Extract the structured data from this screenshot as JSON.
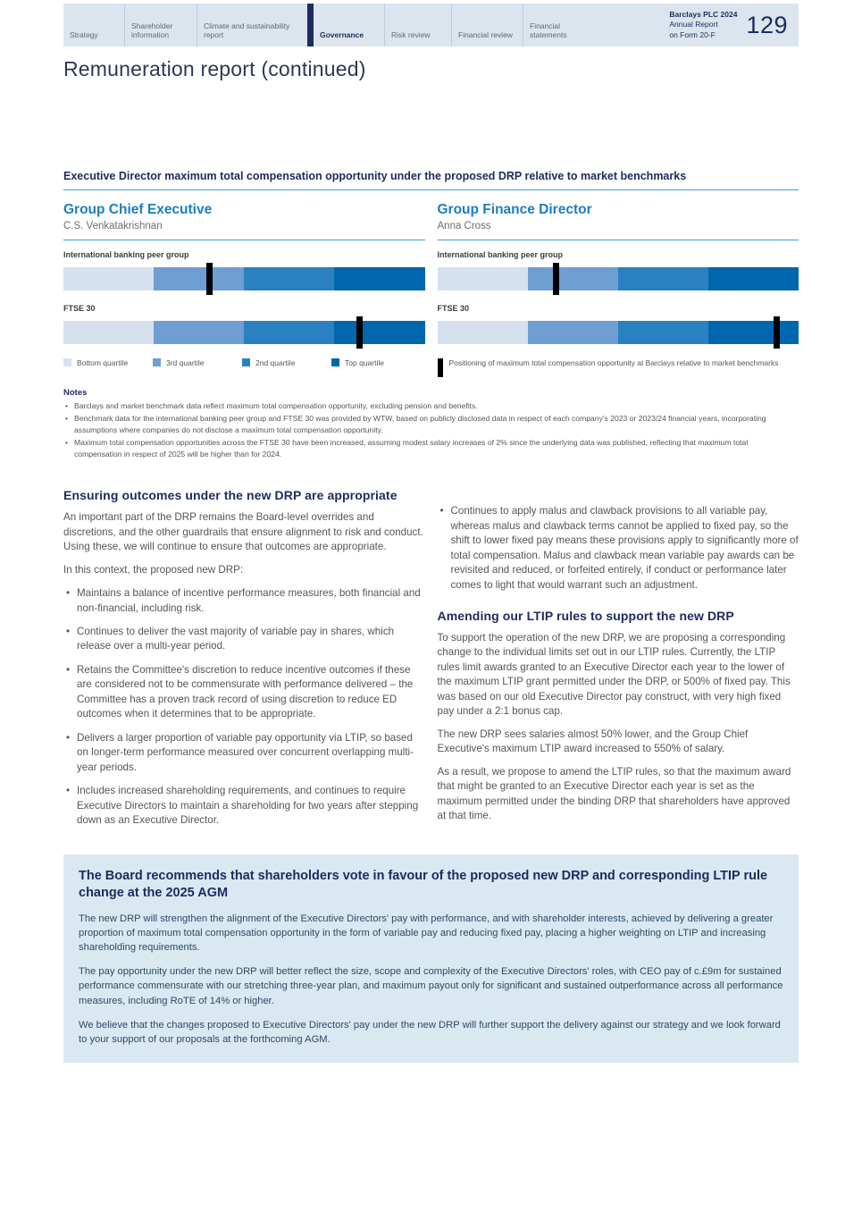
{
  "header": {
    "tabs": [
      {
        "label": "Strategy",
        "active": false
      },
      {
        "label": "Shareholder information",
        "active": false
      },
      {
        "label": "Climate and sustainability report",
        "active": false
      },
      {
        "label": "Governance",
        "active": true
      },
      {
        "label": "Risk review",
        "active": false
      },
      {
        "label": "Financial review",
        "active": false
      },
      {
        "label": "Financial statements",
        "active": false
      }
    ],
    "brand_line1": "Barclays PLC 2024",
    "brand_line2": "Annual Report",
    "brand_line3": "on Form 20-F",
    "page_number": "129"
  },
  "page_title": "Remuneration report (continued)",
  "chart_data": {
    "type": "bar",
    "subtype": "stacked-quartile-benchmark",
    "title": "Executive Director maximum total compensation opportunity under the proposed DRP relative to market benchmarks",
    "quartile_segments_pct": [
      25,
      25,
      25,
      25
    ],
    "quartile_colors": [
      "#d6e1ef",
      "#6f9ed2",
      "#2a80c1",
      "#0066ad"
    ],
    "marker_color": "#000000",
    "panels": [
      {
        "role": "Group Chief Executive",
        "person": "C.S. Venkatakrishnan",
        "bars": [
          {
            "label": "International banking peer group",
            "marker_pct": 40.5
          },
          {
            "label": "FTSE 30",
            "marker_pct": 82
          }
        ]
      },
      {
        "role": "Group Finance Director",
        "person": "Anna Cross",
        "bars": [
          {
            "label": "International banking peer group",
            "marker_pct": 33
          },
          {
            "label": "FTSE 30",
            "marker_pct": 94
          }
        ]
      }
    ],
    "legend": {
      "items": [
        "Bottom quartile",
        "3rd quartile",
        "2nd quartile",
        "Top quartile"
      ],
      "marker_label": "Positioning of maximum total compensation opportunity at Barclays relative to market benchmarks"
    }
  },
  "notes": {
    "title": "Notes",
    "bullets": [
      "Barclays and market benchmark data reflect maximum total compensation opportunity, excluding pension and benefits.",
      "Benchmark data for the international banking peer group and FTSE 30 was provided by WTW, based on publicly disclosed data in respect of each company's 2023 or 2023/24 financial years, incorporating assumptions where companies do not disclose a maximum total compensation opportunity.",
      "Maximum total compensation opportunities across the FTSE 30 have been increased, assuming modest salary increases of 2% since the underlying data was published, reflecting that maximum total compensation in respect of 2025 will be higher than for 2024."
    ]
  },
  "body": {
    "left": {
      "heading": "Ensuring outcomes under the new DRP are appropriate",
      "p1": "An important part of the DRP remains the Board-level overrides and discretions, and the other guardrails that ensure alignment to risk and conduct. Using these, we will continue to ensure that outcomes are appropriate.",
      "p2": "In this context, the proposed new DRP:",
      "bullets": [
        "Maintains a balance of incentive performance measures, both financial and non-financial, including risk.",
        "Continues to deliver the vast majority of variable pay in shares, which release over a multi-year period.",
        "Retains the Committee's discretion to reduce incentive outcomes if these are considered not to be commensurate with performance delivered – the Committee has a proven track record of using discretion to reduce ED outcomes when it determines that to be appropriate.",
        "Delivers a larger proportion of variable pay opportunity via LTIP, so based on longer-term performance measured over concurrent overlapping multi-year periods.",
        "Includes increased shareholding requirements, and continues to require Executive Directors to maintain a shareholding for two years after stepping down as an Executive Director."
      ]
    },
    "right": {
      "bullet": "Continues to apply malus and clawback provisions to all variable pay, whereas malus and clawback terms cannot be applied to fixed pay, so the shift to lower fixed pay means these provisions apply to significantly more of total compensation. Malus and clawback mean variable pay awards can be revisited and reduced, or forfeited entirely, if conduct or performance later comes to light that would warrant such an adjustment.",
      "heading": "Amending our LTIP rules to support the new DRP",
      "p1": "To support the operation of the new DRP, we are proposing a corresponding change  to the individual limits set out in our LTIP rules.  Currently, the LTIP rules limit awards granted to an Executive Director each year to the lower of the maximum LTIP grant permitted under the DRP, or 500% of fixed pay.  This was based on our old Executive Director pay construct, with very high fixed pay under a 2:1 bonus cap.",
      "p2": "The new DRP sees salaries almost 50% lower, and the Group Chief Executive's maximum LTIP award increased to 550% of salary.",
      "p3": "As a result, we propose to amend the LTIP rules, so that the maximum award that might be granted to an Executive Director each year is set as the maximum permitted under the binding DRP that shareholders have approved at that time."
    }
  },
  "box": {
    "heading": "The Board recommends that shareholders vote in favour of the proposed new DRP and corresponding LTIP rule change at the 2025 AGM",
    "p1": "The new DRP will strengthen the alignment of the Executive Directors' pay with performance, and with shareholder interests, achieved by delivering a greater proportion of maximum total compensation opportunity in the form of variable pay and reducing fixed pay, placing a higher weighting on LTIP and increasing shareholding requirements.",
    "p2": "The pay opportunity under the new DRP will better reflect the size, scope and complexity of the Executive Directors' roles, with CEO pay of c.£9m for sustained performance commensurate with our stretching three-year plan, and maximum payout only for significant and sustained outperformance across all performance measures, including RoTE of 14% or higher.",
    "p3": "We believe that the changes proposed to Executive Directors' pay under the new DRP will further support the delivery against our strategy and we look forward to your support of our proposals at the forthcoming AGM."
  },
  "colors": {
    "navy": "#1d2b5f",
    "accent_blue": "#1b7ec1",
    "rule_blue": "#3fa0d8",
    "band_bg": "#dbe5ee",
    "box_bg": "#d9e8f1"
  }
}
